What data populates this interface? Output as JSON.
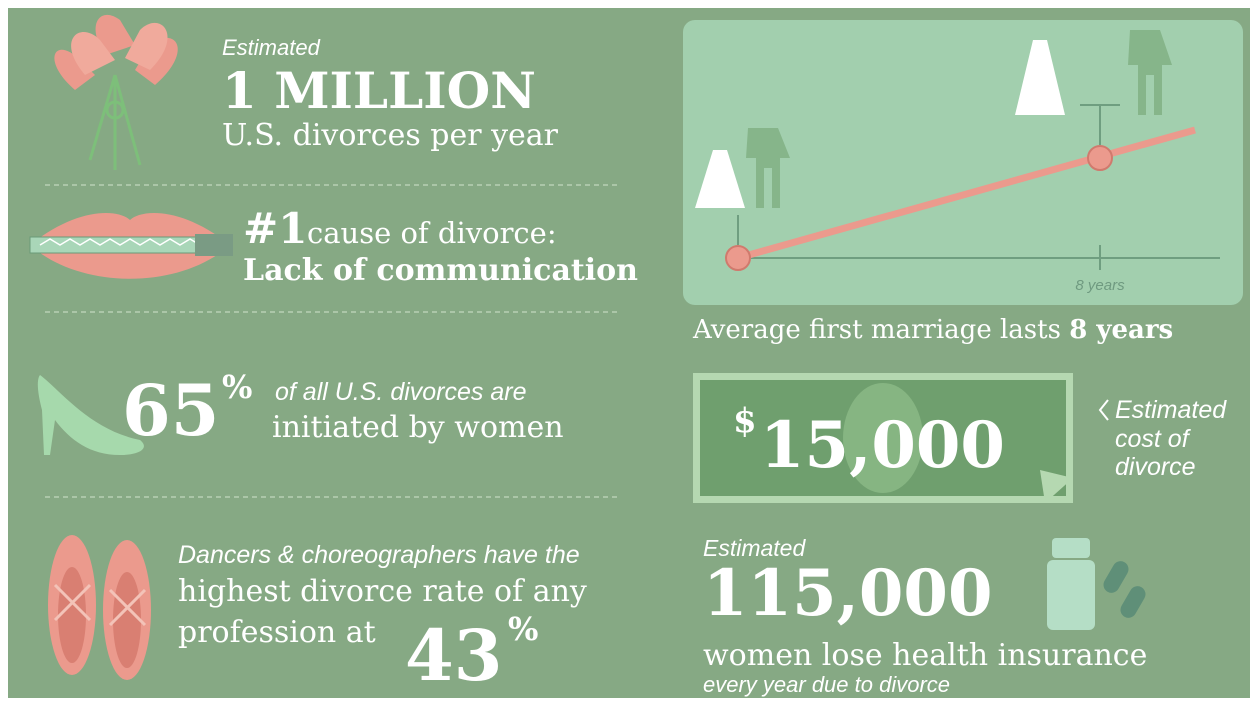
{
  "facts": [
    {
      "pre": "Estimated",
      "headline": "1 MILLION",
      "text": "U.S. divorces per year"
    },
    {
      "headline": "#1",
      "text": "cause of divorce:",
      "bold": "Lack of communication"
    },
    {
      "number": "65",
      "unit": "%",
      "line1": "of all U.S. divorces are",
      "line2": "initiated by women"
    },
    {
      "line1": "Dancers & choreographers have the",
      "line2": "highest divorce rate of any",
      "line3": "profession at",
      "number": "43",
      "unit": "%"
    }
  ],
  "marriage": {
    "axis_label": "8 years",
    "caption": "Average first marriage lasts",
    "caption_bold": "8 years"
  },
  "cost": {
    "currency": "$",
    "amount": "15,000",
    "label_lines": [
      "Estimated",
      "cost of",
      "divorce"
    ]
  },
  "insurance": {
    "pre": "Estimated",
    "number": "115,000",
    "text": "women lose health insurance",
    "subtext": "every year due to divorce"
  }
}
